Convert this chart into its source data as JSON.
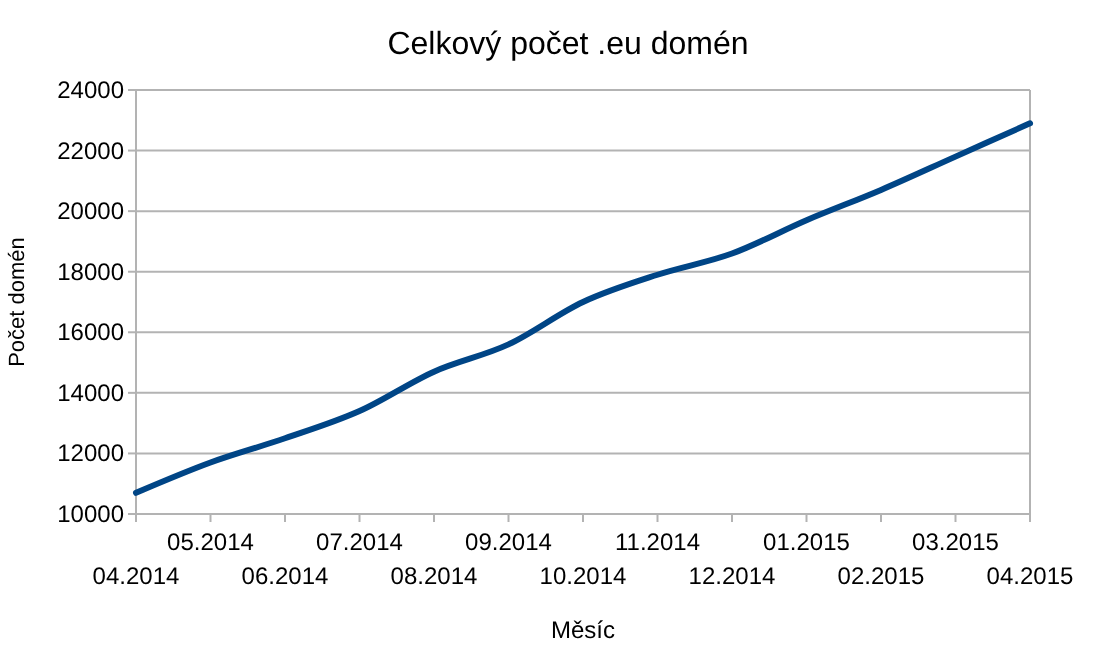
{
  "chart_data": {
    "type": "line",
    "title": "Celkový počet .eu domén",
    "xlabel": "Měsíc",
    "ylabel": "Počet domén",
    "categories": [
      "04.2014",
      "05.2014",
      "06.2014",
      "07.2014",
      "08.2014",
      "09.2014",
      "10.2014",
      "11.2014",
      "12.2014",
      "01.2015",
      "02.2015",
      "03.2015",
      "04.2015"
    ],
    "series": [
      {
        "color": "#004586",
        "values": [
          10700,
          11700,
          12500,
          13400,
          14700,
          15600,
          17000,
          17900,
          18600,
          19700,
          20700,
          21800,
          22900
        ]
      }
    ],
    "ylim": [
      10000,
      24000
    ],
    "yticks": [
      10000,
      12000,
      14000,
      16000,
      18000,
      20000,
      22000,
      24000
    ],
    "grid": "y",
    "marker": "none",
    "line_style": "solid"
  }
}
